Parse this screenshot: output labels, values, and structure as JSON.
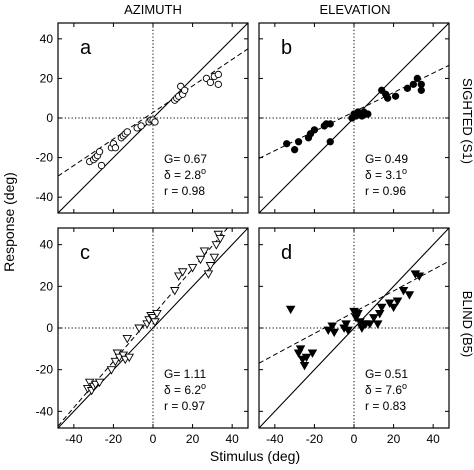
{
  "column_titles": [
    "AZIMUTH",
    "ELEVATION"
  ],
  "row_labels": [
    "SIGHTED (S1)",
    "BLIND (B5)"
  ],
  "xlabel": "Stimulus (deg)",
  "ylabel": "Response (deg)",
  "chart_data": [
    {
      "type": "scatter",
      "panel": "a",
      "column": "AZIMUTH",
      "row": "SIGHTED (S1)",
      "marker": "circle-open",
      "xlim": [
        -48,
        48
      ],
      "ylim": [
        -48,
        48
      ],
      "x_ticks": [
        -40,
        -20,
        0,
        20,
        40
      ],
      "y_ticks": [
        -40,
        -20,
        0,
        20,
        40
      ],
      "reference_lines": [
        "y=x (solid)",
        "x=0 (dotted)",
        "y=0 (dotted)"
      ],
      "fit_line": {
        "slope": 0.67,
        "intercept": 2.8
      },
      "stats": {
        "G": "G= 0.67",
        "delta": "δ = 2.8",
        "delta_unit": "o",
        "r": "r = 0.98"
      },
      "points": [
        [
          -32,
          -22
        ],
        [
          -30,
          -21
        ],
        [
          -29,
          -20
        ],
        [
          -28,
          -19
        ],
        [
          -27,
          -17
        ],
        [
          -26,
          -24
        ],
        [
          -21,
          -15
        ],
        [
          -20,
          -13
        ],
        [
          -19,
          -15
        ],
        [
          -16,
          -10
        ],
        [
          -15,
          -9
        ],
        [
          -14,
          -8
        ],
        [
          -13,
          -7
        ],
        [
          -8,
          -5
        ],
        [
          -6,
          -4
        ],
        [
          -2,
          -2
        ],
        [
          -1,
          -1
        ],
        [
          0,
          -1
        ],
        [
          1,
          -2
        ],
        [
          11,
          9
        ],
        [
          12,
          10
        ],
        [
          13,
          11
        ],
        [
          14,
          16
        ],
        [
          15,
          12
        ],
        [
          16,
          14
        ],
        [
          27,
          20
        ],
        [
          29,
          18
        ],
        [
          31,
          21
        ],
        [
          33,
          17
        ],
        [
          33,
          22
        ]
      ]
    },
    {
      "type": "scatter",
      "panel": "b",
      "column": "ELEVATION",
      "row": "SIGHTED (S1)",
      "marker": "circle-filled",
      "xlim": [
        -48,
        48
      ],
      "ylim": [
        -48,
        48
      ],
      "x_ticks": [
        -40,
        -20,
        0,
        20,
        40
      ],
      "y_ticks": [
        -40,
        -20,
        0,
        20,
        40
      ],
      "reference_lines": [
        "y=x (solid)",
        "x=0 (dotted)",
        "y=0 (dotted)"
      ],
      "fit_line": {
        "slope": 0.49,
        "intercept": 3.1
      },
      "stats": {
        "G": "G= 0.49",
        "delta": "δ = 3.1",
        "delta_unit": "o",
        "r": "r = 0.96"
      },
      "points": [
        [
          -34,
          -13
        ],
        [
          -30,
          -16
        ],
        [
          -28,
          -12
        ],
        [
          -23,
          -10
        ],
        [
          -22,
          -8
        ],
        [
          -20,
          -6
        ],
        [
          -15,
          -4
        ],
        [
          -14,
          -3
        ],
        [
          -12,
          -3
        ],
        [
          -12,
          -12
        ],
        [
          -1,
          0
        ],
        [
          0,
          2
        ],
        [
          1,
          1
        ],
        [
          2,
          3
        ],
        [
          3,
          2
        ],
        [
          4,
          1
        ],
        [
          5,
          3
        ],
        [
          6,
          2
        ],
        [
          7,
          2
        ],
        [
          14,
          14
        ],
        [
          16,
          12
        ],
        [
          17,
          10
        ],
        [
          21,
          11
        ],
        [
          27,
          15
        ],
        [
          30,
          17
        ],
        [
          32,
          20
        ],
        [
          34,
          14
        ],
        [
          34,
          17
        ]
      ]
    },
    {
      "type": "scatter",
      "panel": "c",
      "column": "AZIMUTH",
      "row": "BLIND (B5)",
      "marker": "triangle-down-open",
      "xlim": [
        -48,
        48
      ],
      "ylim": [
        -48,
        48
      ],
      "x_ticks": [
        -40,
        -20,
        0,
        20,
        40
      ],
      "y_ticks": [
        -40,
        -20,
        0,
        20,
        40
      ],
      "reference_lines": [
        "y=x (solid)",
        "x=0 (dotted)",
        "y=0 (dotted)"
      ],
      "fit_line": {
        "slope": 1.11,
        "intercept": 6.2
      },
      "stats": {
        "G": "G= 1.11",
        "delta": "δ = 6.2",
        "delta_unit": "o",
        "r": "r = 0.97"
      },
      "points": [
        [
          -33,
          -29
        ],
        [
          -32,
          -26
        ],
        [
          -31,
          -30
        ],
        [
          -30,
          -28
        ],
        [
          -29,
          -27
        ],
        [
          -27,
          -26
        ],
        [
          -21,
          -20
        ],
        [
          -19,
          -16
        ],
        [
          -18,
          -12
        ],
        [
          -17,
          -14
        ],
        [
          -15,
          -13
        ],
        [
          -14,
          -15
        ],
        [
          -13,
          -5
        ],
        [
          -12,
          -14
        ],
        [
          -7,
          0
        ],
        [
          -3,
          2
        ],
        [
          -2,
          4
        ],
        [
          -1,
          6
        ],
        [
          0,
          5
        ],
        [
          1,
          3
        ],
        [
          2,
          7
        ],
        [
          11,
          18
        ],
        [
          13,
          25
        ],
        [
          15,
          27
        ],
        [
          20,
          29
        ],
        [
          24,
          33
        ],
        [
          26,
          37
        ],
        [
          28,
          26
        ],
        [
          29,
          30
        ],
        [
          31,
          34
        ],
        [
          32,
          40
        ],
        [
          33,
          45
        ],
        [
          34,
          43
        ]
      ]
    },
    {
      "type": "scatter",
      "panel": "d",
      "column": "ELEVATION",
      "row": "BLIND (B5)",
      "marker": "triangle-down-filled",
      "xlim": [
        -48,
        48
      ],
      "ylim": [
        -48,
        48
      ],
      "x_ticks": [
        -40,
        -20,
        0,
        20,
        40
      ],
      "y_ticks": [
        -40,
        -20,
        0,
        20,
        40
      ],
      "reference_lines": [
        "y=x (solid)",
        "x=0 (dotted)",
        "y=0 (dotted)"
      ],
      "fit_line": {
        "slope": 0.51,
        "intercept": 7.6
      },
      "stats": {
        "G": "G= 0.51",
        "delta": "δ = 7.6",
        "delta_unit": "o",
        "r": "r = 0.83"
      },
      "points": [
        [
          -32,
          9
        ],
        [
          -28,
          -12
        ],
        [
          -27,
          -10
        ],
        [
          -26,
          -15
        ],
        [
          -25,
          -18
        ],
        [
          -24,
          -14
        ],
        [
          -21,
          -12
        ],
        [
          -13,
          -1
        ],
        [
          -11,
          1
        ],
        [
          -10,
          -2
        ],
        [
          -5,
          0
        ],
        [
          -4,
          2
        ],
        [
          -3,
          -1
        ],
        [
          0,
          8
        ],
        [
          1,
          5
        ],
        [
          2,
          7
        ],
        [
          3,
          3
        ],
        [
          4,
          0
        ],
        [
          5,
          2
        ],
        [
          6,
          2
        ],
        [
          8,
          2
        ],
        [
          10,
          5
        ],
        [
          12,
          2
        ],
        [
          13,
          7
        ],
        [
          14,
          10
        ],
        [
          18,
          12
        ],
        [
          20,
          10
        ],
        [
          22,
          13
        ],
        [
          25,
          18
        ],
        [
          28,
          16
        ],
        [
          31,
          26
        ],
        [
          33,
          25
        ]
      ]
    }
  ]
}
